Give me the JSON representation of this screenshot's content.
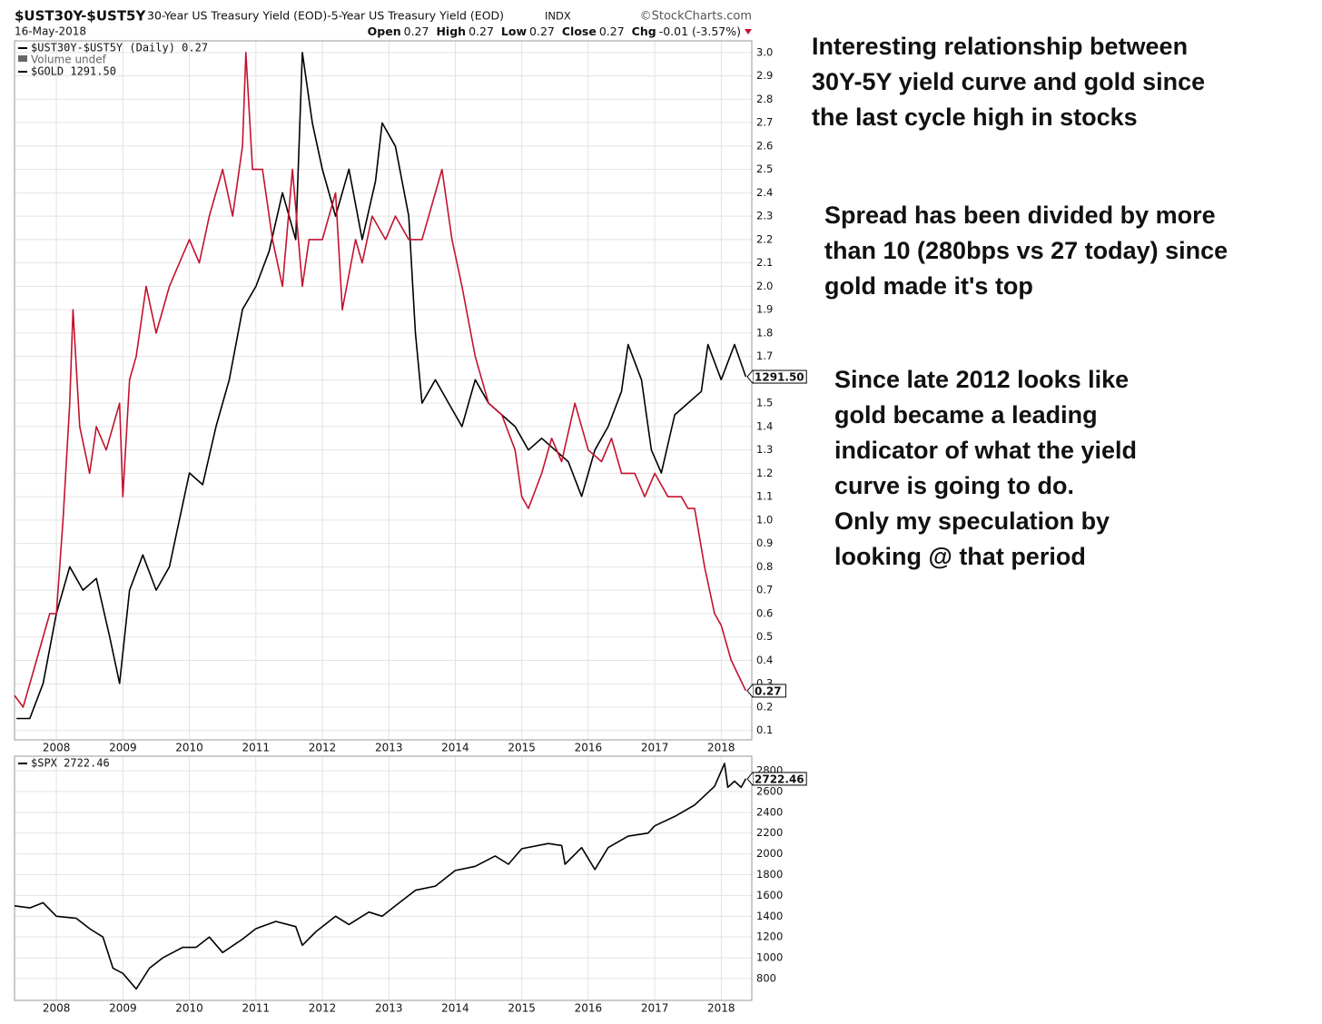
{
  "header": {
    "symbol": "$UST30Y-$UST5Y",
    "description": "30-Year US Treasury Yield (EOD)-5-Year US Treasury Yield (EOD)",
    "exchange": "INDX",
    "source": "©StockCharts.com",
    "date": "16-May-2018",
    "quote": [
      {
        "label": "Open",
        "value": "0.27"
      },
      {
        "label": "High",
        "value": "0.27"
      },
      {
        "label": "Low",
        "value": "0.27"
      },
      {
        "label": "Close",
        "value": "0.27"
      },
      {
        "label": "Chg",
        "value": "-0.01 (-3.57%)"
      }
    ]
  },
  "chart_data": [
    {
      "type": "line",
      "volume_legend": "Volume undef",
      "xlim": [
        2007.37,
        2018.46
      ],
      "xticks": [
        2008,
        2009,
        2010,
        2011,
        2012,
        2013,
        2014,
        2015,
        2016,
        2017,
        2018
      ],
      "ylim": [
        0.06,
        3.05
      ],
      "yticks": [
        0.1,
        0.2,
        0.3,
        0.4,
        0.5,
        0.6,
        0.7,
        0.8,
        0.9,
        {
          "value": 1.0,
          "label": "1.0"
        },
        1.1,
        1.2,
        1.3,
        1.4,
        1.5,
        1.6,
        1.7,
        1.8,
        1.9,
        {
          "value": 2.0,
          "label": "2.0"
        },
        2.1,
        2.2,
        2.3,
        2.4,
        2.5,
        2.6,
        2.7,
        2.8,
        2.9,
        {
          "value": 3.0,
          "label": "3.0"
        }
      ],
      "y2lim": [
        610,
        1922
      ],
      "grid": true,
      "series": [
        {
          "name": "$UST30Y-$UST5Y (Daily) 0.27",
          "color": "#c4122f",
          "end_label": "0.27",
          "x": [
            2007.37,
            2007.5,
            2007.7,
            2007.9,
            2008.0,
            2008.1,
            2008.2,
            2008.25,
            2008.35,
            2008.5,
            2008.6,
            2008.75,
            2008.95,
            2009.0,
            2009.1,
            2009.2,
            2009.35,
            2009.5,
            2009.7,
            2009.85,
            2010.0,
            2010.15,
            2010.3,
            2010.5,
            2010.65,
            2010.8,
            2010.85,
            2010.95,
            2011.1,
            2011.25,
            2011.4,
            2011.55,
            2011.7,
            2011.8,
            2012.0,
            2012.2,
            2012.3,
            2012.5,
            2012.6,
            2012.75,
            2012.95,
            2013.1,
            2013.3,
            2013.5,
            2013.7,
            2013.8,
            2013.95,
            2014.1,
            2014.3,
            2014.5,
            2014.7,
            2014.9,
            2015.0,
            2015.1,
            2015.3,
            2015.45,
            2015.6,
            2015.8,
            2016.0,
            2016.2,
            2016.35,
            2016.5,
            2016.7,
            2016.85,
            2017.0,
            2017.2,
            2017.4,
            2017.5,
            2017.6,
            2017.75,
            2017.9,
            2018.0,
            2018.15,
            2018.37
          ],
          "values": [
            0.25,
            0.2,
            0.4,
            0.6,
            0.6,
            1.0,
            1.5,
            1.9,
            1.4,
            1.2,
            1.4,
            1.3,
            1.5,
            1.1,
            1.6,
            1.7,
            2.0,
            1.8,
            2.0,
            2.1,
            2.2,
            2.1,
            2.3,
            2.5,
            2.3,
            2.6,
            3.0,
            2.5,
            2.5,
            2.2,
            2.0,
            2.5,
            2.0,
            2.2,
            2.2,
            2.4,
            1.9,
            2.2,
            2.1,
            2.3,
            2.2,
            2.3,
            2.2,
            2.2,
            2.4,
            2.5,
            2.2,
            2.0,
            1.7,
            1.5,
            1.45,
            1.3,
            1.1,
            1.05,
            1.2,
            1.35,
            1.25,
            1.5,
            1.3,
            1.25,
            1.35,
            1.2,
            1.2,
            1.1,
            1.2,
            1.1,
            1.1,
            1.05,
            1.05,
            0.8,
            0.6,
            0.55,
            0.4,
            0.27
          ]
        },
        {
          "name": "$GOLD 1291.50",
          "color": "#000000",
          "axis": "y2",
          "end_label": "1291.50",
          "x": [
            2007.4,
            2007.6,
            2007.8,
            2008.0,
            2008.2,
            2008.4,
            2008.6,
            2008.8,
            2008.95,
            2009.1,
            2009.3,
            2009.5,
            2009.7,
            2009.85,
            2010.0,
            2010.2,
            2010.4,
            2010.6,
            2010.8,
            2011.0,
            2011.2,
            2011.4,
            2011.6,
            2011.7,
            2011.85,
            2012.0,
            2012.2,
            2012.4,
            2012.6,
            2012.8,
            2012.9,
            2013.1,
            2013.3,
            2013.4,
            2013.5,
            2013.7,
            2013.9,
            2014.1,
            2014.3,
            2014.5,
            2014.7,
            2014.9,
            2015.1,
            2015.3,
            2015.5,
            2015.7,
            2015.9,
            2016.1,
            2016.3,
            2016.5,
            2016.6,
            2016.8,
            2016.95,
            2017.1,
            2017.3,
            2017.5,
            2017.7,
            2017.8,
            2018.0,
            2018.2,
            2018.37
          ],
          "values": [
            650,
            650,
            716,
            847,
            935,
            891,
            913,
            804,
            716,
            891,
            957,
            891,
            935,
            1023,
            1111,
            1089,
            1198,
            1286,
            1418,
            1461,
            1527,
            1637,
            1549,
            1900,
            1768,
            1681,
            1593,
            1681,
            1549,
            1659,
            1768,
            1724,
            1593,
            1374,
            1242,
            1286,
            1242,
            1198,
            1286,
            1242,
            1220,
            1198,
            1154,
            1176,
            1154,
            1132,
            1067,
            1154,
            1198,
            1264,
            1352,
            1286,
            1154,
            1111,
            1220,
            1242,
            1264,
            1352,
            1286,
            1352,
            1291.5
          ]
        }
      ]
    },
    {
      "type": "line",
      "xlim": [
        2007.37,
        2018.46
      ],
      "xticks": [
        2008,
        2009,
        2010,
        2011,
        2012,
        2013,
        2014,
        2015,
        2016,
        2017,
        2018
      ],
      "ylim": [
        590,
        2940
      ],
      "yticks": [
        800,
        1000,
        1200,
        1400,
        1600,
        1800,
        2000,
        2200,
        2400,
        2600,
        2800
      ],
      "grid": true,
      "series": [
        {
          "name": "$SPX 2722.46",
          "color": "#000000",
          "end_label": "2722.46",
          "x": [
            2007.37,
            2007.6,
            2007.8,
            2008.0,
            2008.3,
            2008.5,
            2008.7,
            2008.85,
            2009.0,
            2009.2,
            2009.4,
            2009.6,
            2009.9,
            2010.1,
            2010.3,
            2010.5,
            2010.8,
            2011.0,
            2011.3,
            2011.6,
            2011.7,
            2011.9,
            2012.2,
            2012.4,
            2012.7,
            2012.9,
            2013.1,
            2013.4,
            2013.7,
            2014.0,
            2014.3,
            2014.6,
            2014.8,
            2015.0,
            2015.4,
            2015.6,
            2015.65,
            2015.9,
            2016.1,
            2016.3,
            2016.6,
            2016.9,
            2017.0,
            2017.3,
            2017.6,
            2017.9,
            2018.05,
            2018.1,
            2018.2,
            2018.3,
            2018.37
          ],
          "values": [
            1500,
            1480,
            1530,
            1400,
            1380,
            1280,
            1200,
            900,
            850,
            700,
            900,
            1000,
            1100,
            1100,
            1200,
            1050,
            1180,
            1280,
            1350,
            1300,
            1120,
            1250,
            1400,
            1320,
            1440,
            1400,
            1500,
            1650,
            1690,
            1840,
            1880,
            1980,
            1900,
            2050,
            2100,
            2080,
            1900,
            2060,
            1850,
            2060,
            2170,
            2200,
            2270,
            2360,
            2470,
            2650,
            2870,
            2640,
            2700,
            2640,
            2722.46
          ]
        }
      ]
    }
  ],
  "annotations": [
    [
      "Interesting relationship between",
      "30Y-5Y yield curve and gold since",
      "the last cycle high in stocks"
    ],
    [
      "Spread has been divided by more",
      "than 10 (280bps vs 27 today) since",
      "gold made it's top"
    ],
    [
      "Since late 2012 looks like",
      "gold became a leading",
      "indicator of what the yield",
      "curve is going to do.",
      "Only my speculation by",
      "looking @ that period"
    ]
  ]
}
